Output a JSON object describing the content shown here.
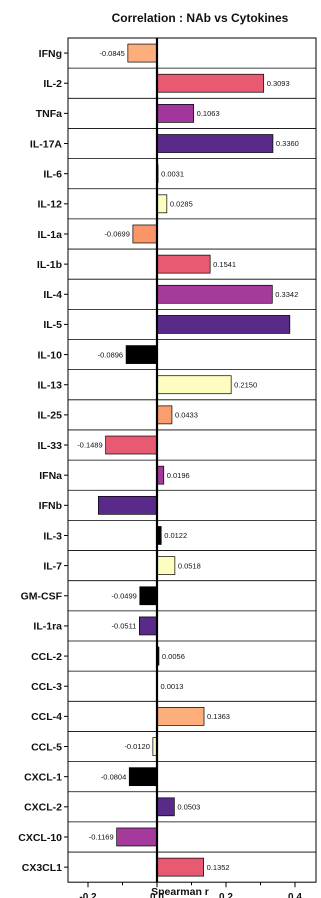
{
  "chart_data": {
    "type": "bar",
    "orientation": "horizontal",
    "title": "Correlation : NAb vs Cytokines",
    "xlabel": "Spearman r",
    "ylabel": "",
    "xlim": [
      -0.3,
      0.47
    ],
    "xticks": [
      "-0.2",
      "0.0",
      "0.2",
      "0.4"
    ],
    "xtick_values": [
      -0.2,
      0.0,
      0.2,
      0.4
    ],
    "grid": "horizontal row separators",
    "legend": "none",
    "categories": [
      "IFNg",
      "IL-2",
      "TNFa",
      "IL-17A",
      "IL-6",
      "IL-12",
      "IL-1a",
      "IL-1b",
      "IL-4",
      "IL-5",
      "IL-10",
      "IL-13",
      "IL-25",
      "IL-33",
      "IFNa",
      "IFNb",
      "IL-3",
      "IL-7",
      "GM-CSF",
      "IL-1ra",
      "CCL-2",
      "CCL-3",
      "CCL-4",
      "CCL-5",
      "CXCL-1",
      "CXCL-2",
      "CXCL-10",
      "CX3CL1"
    ],
    "values": [
      -0.0845,
      0.3093,
      0.1063,
      0.336,
      0.0031,
      0.0285,
      -0.0699,
      0.1541,
      0.3342,
      0.385,
      -0.0896,
      0.215,
      0.0433,
      -0.1489,
      0.0196,
      -0.17,
      0.0122,
      0.0518,
      -0.0499,
      -0.0511,
      0.0056,
      0.0013,
      0.1363,
      -0.012,
      -0.0804,
      0.0503,
      -0.1169,
      0.1352
    ],
    "value_labels": [
      "-0.0845",
      "0.3093",
      "0.1063",
      "0.3360",
      "0.0031",
      "0.0285",
      "-0.0699",
      "0.1541",
      "0.3342",
      "",
      "-0.0896",
      "0.2150",
      "0.0433",
      "-0.1489",
      "0.0196",
      "",
      "0.0122",
      "0.0518",
      "-0.0499",
      "-0.0511",
      "0.0056",
      "0.0013",
      "0.1363",
      "-0.0120",
      "-0.0804",
      "0.0503",
      "-0.1169",
      "0.1352"
    ],
    "bar_colors": [
      "#fcae7c",
      "#e85a72",
      "#a1369c",
      "#5a2a8a",
      "#f8e9b8",
      "#fcfdbf",
      "#fa9567",
      "#e85a72",
      "#a63a9c",
      "#5a2a8a",
      "#000000",
      "#fcfdbf",
      "#fb9e6f",
      "#e85a72",
      "#a63a9c",
      "#5a2a8a",
      "#000000",
      "#fcfdbf",
      "#000000",
      "#5a2a8a",
      "#000000",
      "#f0f0e0",
      "#fcae7c",
      "#fcfdbf",
      "#000000",
      "#5a2a8a",
      "#a63a9c",
      "#e85a72"
    ]
  }
}
